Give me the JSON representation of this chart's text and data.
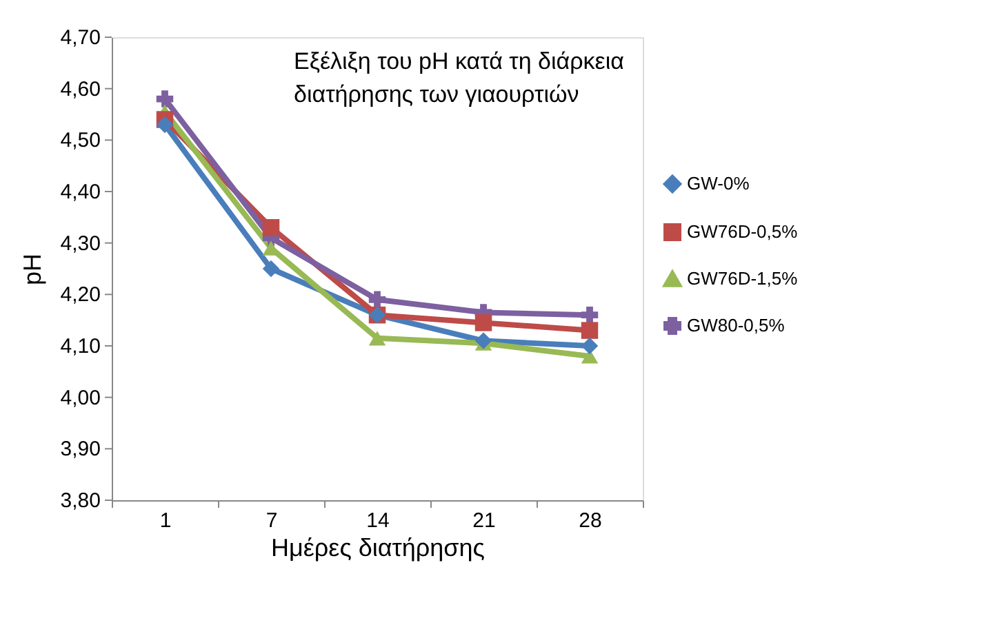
{
  "chart_data": {
    "type": "line",
    "title": "Εξέλιξη του pH κατά τη διάρκεια διατήρησης των γιαουρτιών",
    "xlabel": "Ημέρες διατήρησης",
    "ylabel": "pH",
    "categories": [
      "1",
      "7",
      "14",
      "21",
      "28"
    ],
    "series": [
      {
        "name": "GW-0%",
        "color": "#4a7ebb",
        "marker": "diamond",
        "values": [
          4.53,
          4.25,
          4.16,
          4.11,
          4.1
        ]
      },
      {
        "name": "GW76D-0,5%",
        "color": "#be4b48",
        "marker": "square",
        "values": [
          4.54,
          4.33,
          4.16,
          4.145,
          4.13
        ]
      },
      {
        "name": "GW76D-1,5%",
        "color": "#98b954",
        "marker": "triangle",
        "values": [
          4.555,
          4.29,
          4.115,
          4.105,
          4.08
        ]
      },
      {
        "name": "GW80-0,5%",
        "color": "#7d60a0",
        "marker": "cross",
        "values": [
          4.58,
          4.31,
          4.19,
          4.165,
          4.16
        ]
      }
    ],
    "ylim": [
      3.8,
      4.7
    ],
    "yticks": [
      {
        "value": 3.8,
        "label": "3,80"
      },
      {
        "value": 3.9,
        "label": "3,90"
      },
      {
        "value": 4.0,
        "label": "4,00"
      },
      {
        "value": 4.1,
        "label": "4,10"
      },
      {
        "value": 4.2,
        "label": "4,20"
      },
      {
        "value": 4.3,
        "label": "4,30"
      },
      {
        "value": 4.4,
        "label": "4,40"
      },
      {
        "value": 4.5,
        "label": "4,50"
      },
      {
        "value": 4.6,
        "label": "4,60"
      },
      {
        "value": 4.7,
        "label": "4,70"
      }
    ],
    "grid": false,
    "legend": "right",
    "line_style": "solid"
  }
}
